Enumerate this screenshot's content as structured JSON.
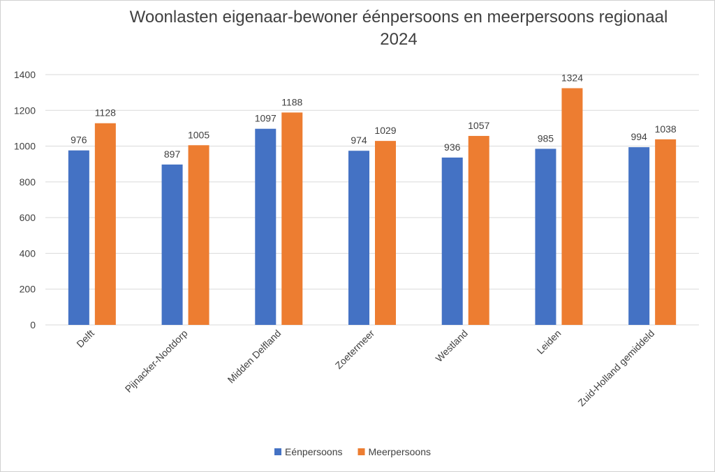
{
  "chart_data": {
    "type": "bar",
    "title": [
      "Woonlasten eigenaar-bewoner éénpersoons en meerpersoons regionaal",
      "2024"
    ],
    "categories": [
      "Delft",
      "Pijnacker-Nootdorp",
      "Midden Delfland",
      "Zoetermeer",
      "Westland",
      "Leiden",
      "Zuid-Holland gemiddeld"
    ],
    "series": [
      {
        "name": "Eénpersoons",
        "color": "#4472C4",
        "values": [
          976,
          897,
          1097,
          974,
          936,
          985,
          994
        ]
      },
      {
        "name": "Meerpersoons",
        "color": "#ED7D31",
        "values": [
          1128,
          1005,
          1188,
          1029,
          1057,
          1324,
          1038
        ]
      }
    ],
    "ylim": [
      0,
      1400
    ],
    "yticks": [
      0,
      200,
      400,
      600,
      800,
      1000,
      1200,
      1400
    ],
    "grid": true,
    "legend": "bottom",
    "data_labels": true
  }
}
